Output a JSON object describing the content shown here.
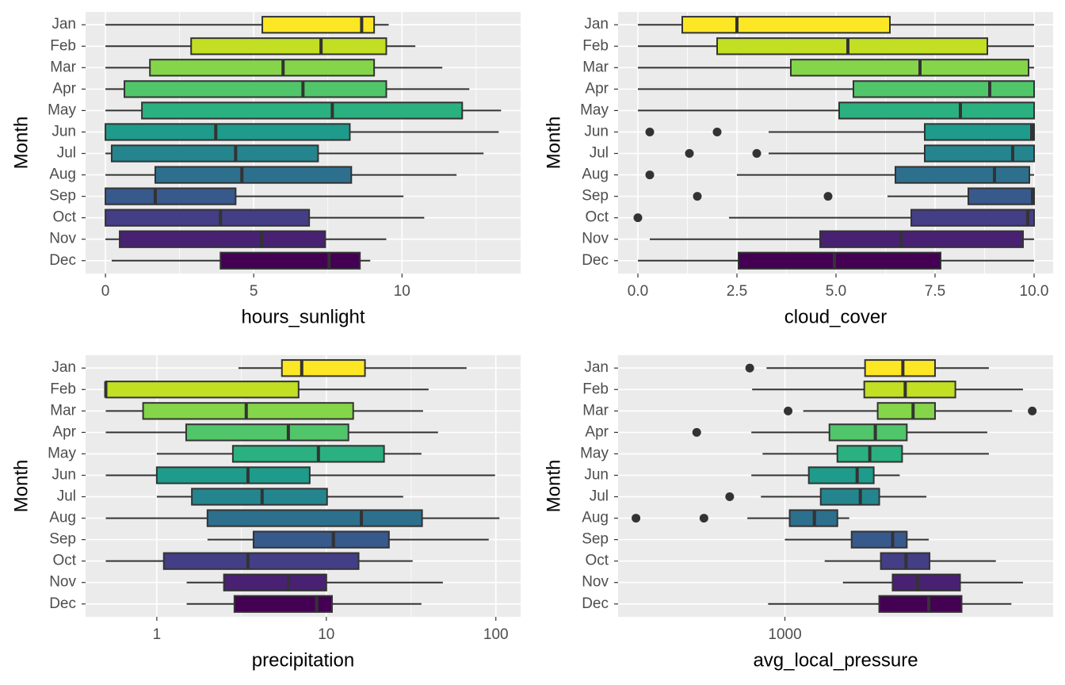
{
  "chart_data": [
    {
      "type": "box",
      "x_label": "hours_sunlight",
      "y_label": "Month",
      "categories": [
        "Jan",
        "Feb",
        "Mar",
        "Apr",
        "May",
        "Jun",
        "Jul",
        "Aug",
        "Sep",
        "Oct",
        "Nov",
        "Dec"
      ],
      "colors": [
        "#FDE725",
        "#C2DF23",
        "#85D54A",
        "#51C56A",
        "#2BB07F",
        "#1E9B8A",
        "#25858E",
        "#2D708E",
        "#38598C",
        "#433E85",
        "#482173",
        "#440154"
      ],
      "whisker_low": [
        0,
        0,
        0,
        0,
        0,
        0,
        0,
        0,
        0,
        0,
        0,
        0.21
      ],
      "q1": [
        5.29,
        2.89,
        1.5,
        0.64,
        1.23,
        0,
        0.21,
        1.68,
        0,
        0,
        0.48,
        3.88
      ],
      "median": [
        8.64,
        7.27,
        5.99,
        6.66,
        7.65,
        3.72,
        4.39,
        4.6,
        1.68,
        3.88,
        5.27,
        7.54
      ],
      "q3": [
        9.06,
        9.47,
        9.06,
        9.47,
        12.03,
        8.24,
        7.17,
        8.29,
        4.39,
        6.87,
        7.41,
        8.58
      ],
      "whisker_high": [
        9.55,
        10.45,
        11.36,
        12.27,
        13.34,
        13.26,
        12.75,
        11.84,
        10.05,
        10.75,
        9.47,
        8.93
      ],
      "outliers": [
        [],
        [],
        [],
        [],
        [],
        [],
        [],
        [],
        [],
        [],
        [],
        []
      ],
      "xlim": [
        -0.67,
        14.0
      ],
      "xticks": [
        0,
        5,
        10
      ],
      "minor_xticks": [
        2.5,
        7.5,
        12.5
      ],
      "log_x": false,
      "grid": true
    },
    {
      "type": "box",
      "x_label": "cloud_cover",
      "y_label": "Month",
      "categories": [
        "Jan",
        "Feb",
        "Mar",
        "Apr",
        "May",
        "Jun",
        "Jul",
        "Aug",
        "Sep",
        "Oct",
        "Nov",
        "Dec"
      ],
      "colors": [
        "#FDE725",
        "#C2DF23",
        "#85D54A",
        "#51C56A",
        "#2BB07F",
        "#1E9B8A",
        "#25858E",
        "#2D708E",
        "#38598C",
        "#433E85",
        "#482173",
        "#440154"
      ],
      "whisker_low": [
        0,
        0,
        0,
        0,
        0,
        3.3,
        3.3,
        2.5,
        6.3,
        2.3,
        0.3,
        0
      ],
      "q1": [
        1.12,
        2.0,
        3.86,
        5.44,
        5.08,
        7.24,
        7.24,
        6.5,
        8.34,
        6.9,
        4.6,
        2.54
      ],
      "median": [
        2.5,
        5.3,
        7.12,
        8.88,
        8.14,
        9.94,
        9.46,
        9.0,
        9.96,
        9.84,
        6.64,
        4.96
      ],
      "q3": [
        6.36,
        8.82,
        9.86,
        10,
        10,
        10,
        10,
        9.88,
        10,
        10,
        9.72,
        7.64
      ],
      "whisker_high": [
        10,
        10,
        10,
        10,
        10,
        10,
        10,
        10,
        10,
        10,
        10,
        10
      ],
      "outliers": [
        [],
        [],
        [],
        [],
        [],
        [
          0.3,
          2.0
        ],
        [
          1.3,
          3.0
        ],
        [
          0.3
        ],
        [
          1.5,
          4.8
        ],
        [
          0
        ],
        [],
        []
      ],
      "xlim": [
        -0.5,
        10.48
      ],
      "xticks": [
        {
          "value": 0,
          "label": "0.0"
        },
        {
          "value": 2.5,
          "label": "2.5"
        },
        {
          "value": 5,
          "label": "5.0"
        },
        {
          "value": 7.5,
          "label": "7.5"
        },
        {
          "value": 10,
          "label": "10.0"
        }
      ],
      "minor_xticks": [
        1.25,
        3.75,
        6.25,
        8.75
      ],
      "log_x": false,
      "grid": true
    },
    {
      "type": "box",
      "x_label": "precipitation",
      "y_label": "Month",
      "categories": [
        "Jan",
        "Feb",
        "Mar",
        "Apr",
        "May",
        "Jun",
        "Jul",
        "Aug",
        "Sep",
        "Oct",
        "Nov",
        "Dec"
      ],
      "colors": [
        "#FDE725",
        "#C2DF23",
        "#85D54A",
        "#51C56A",
        "#2BB07F",
        "#1E9B8A",
        "#25858E",
        "#2D708E",
        "#38598C",
        "#433E85",
        "#482173",
        "#440154"
      ],
      "whisker_low": [
        3.03,
        0.5,
        0.5,
        0.5,
        1.0,
        0.5,
        1.0,
        0.5,
        1.99,
        0.5,
        1.5,
        1.5
      ],
      "q1": [
        5.47,
        0.5,
        0.83,
        1.49,
        2.81,
        1.0,
        1.61,
        1.99,
        3.72,
        1.1,
        2.49,
        2.87
      ],
      "median": [
        7.16,
        0.5,
        3.37,
        5.97,
        8.98,
        3.45,
        4.18,
        16.1,
        11.0,
        3.45,
        5.97,
        8.77
      ],
      "q3": [
        16.9,
        6.86,
        14.4,
        13.5,
        21.9,
        7.98,
        10.1,
        36.7,
        23.4,
        15.5,
        10.0,
        10.8
      ],
      "whisker_high": [
        67.2,
        40.1,
        37.2,
        45.6,
        36.4,
        98.9,
        28.4,
        105,
        90.8,
        32.3,
        48.7,
        36.4
      ],
      "outliers": [
        [],
        [],
        [],
        [],
        [],
        [],
        [],
        [],
        [],
        [],
        [],
        []
      ],
      "xlim": [
        0.38,
        140
      ],
      "xticks": [
        1,
        10,
        100
      ],
      "minor_xticks": [
        3.16,
        31.6
      ],
      "log_x": true,
      "grid": true
    },
    {
      "type": "box",
      "x_label": "avg_local_pressure",
      "y_label": "Month",
      "categories": [
        "Jan",
        "Feb",
        "Mar",
        "Apr",
        "May",
        "Jun",
        "Jul",
        "Aug",
        "Sep",
        "Oct",
        "Nov",
        "Dec"
      ],
      "colors": [
        "#FDE725",
        "#C2DF23",
        "#85D54A",
        "#51C56A",
        "#2BB07F",
        "#1E9B8A",
        "#25858E",
        "#2D708E",
        "#38598C",
        "#433E85",
        "#482173",
        "#440154"
      ],
      "whisker_low": [
        997.7,
        995.9,
        1002.3,
        995.8,
        997.2,
        995.8,
        997.0,
        995.3,
        1000.0,
        1005.0,
        1007.3,
        997.9
      ],
      "q1": [
        1010.1,
        1010.0,
        1011.7,
        1005.6,
        1006.6,
        1003.0,
        1004.5,
        1000.6,
        1008.4,
        1012.1,
        1013.6,
        1011.9
      ],
      "median": [
        1014.9,
        1015.2,
        1016.2,
        1011.4,
        1010.7,
        1009.1,
        1009.5,
        1003.7,
        1013.6,
        1015.3,
        1016.8,
        1018.2
      ],
      "q3": [
        1019.0,
        1021.6,
        1019.0,
        1015.4,
        1014.8,
        1011.2,
        1011.9,
        1006.6,
        1015.4,
        1018.3,
        1022.2,
        1022.4
      ],
      "whisker_high": [
        1025.9,
        1030.3,
        1028.9,
        1025.7,
        1025.9,
        1014.5,
        1017.9,
        1008.1,
        1018.2,
        1026.8,
        1030.3,
        1028.8
      ],
      "outliers": [
        [
          995.6
        ],
        [],
        [
          1000.4,
          1031.5
        ],
        [
          989.0
        ],
        [],
        [],
        [
          993.1
        ],
        [
          981.5,
          989.9
        ],
        [],
        [],
        [],
        []
      ],
      "xlim": [
        979.3,
        1034.2
      ],
      "xticks": [
        1000
      ],
      "log_x": true,
      "grid": true
    }
  ]
}
